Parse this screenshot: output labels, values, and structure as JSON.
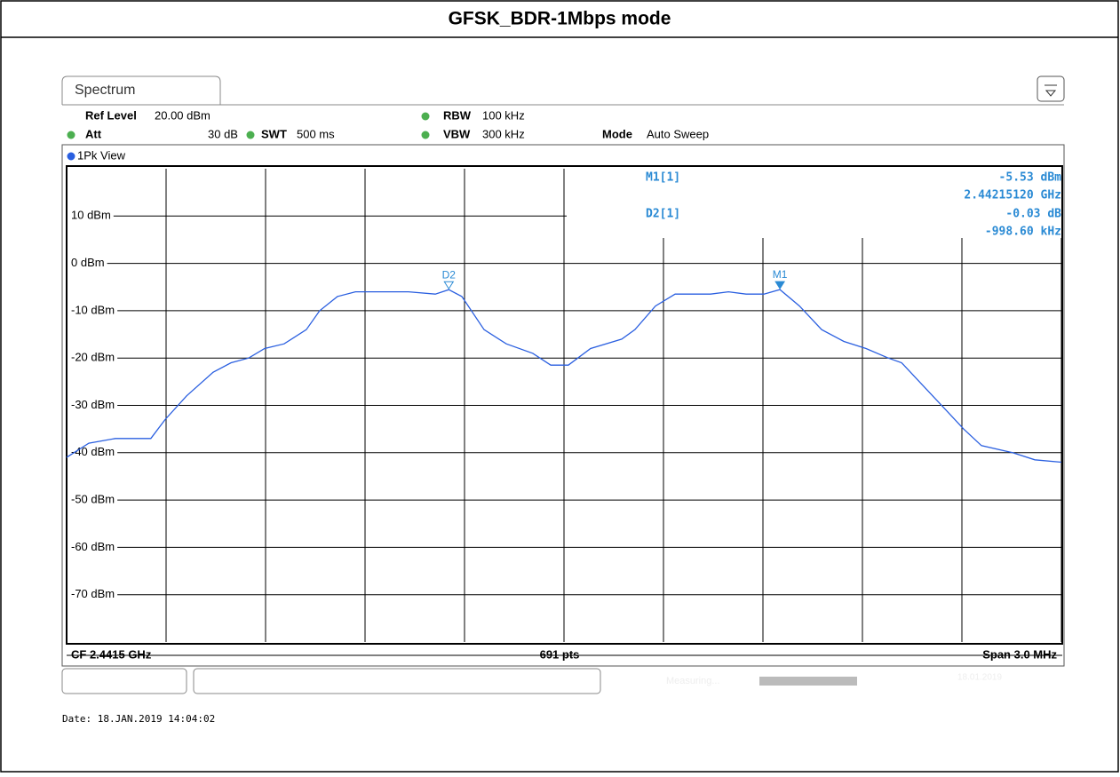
{
  "header": {
    "title": "GFSK_BDR-1Mbps mode"
  },
  "instrument": {
    "tab": "Spectrum",
    "ref_level_label": "Ref Level",
    "ref_level": "20.00 dBm",
    "att_label": "Att",
    "att": "30 dB",
    "swt_label": "SWT",
    "swt": "500 ms",
    "rbw_label": "RBW",
    "rbw": "100 kHz",
    "vbw_label": "VBW",
    "vbw": "300 kHz",
    "mode_label": "Mode",
    "mode": "Auto Sweep",
    "view": "1Pk View"
  },
  "chart_data": {
    "type": "line",
    "x": [
      2.44,
      2.440067,
      2.440147,
      2.440254,
      2.440297,
      2.440362,
      2.440442,
      2.440496,
      2.440549,
      2.440597,
      2.440656,
      2.440723,
      2.440763,
      2.440817,
      2.440871,
      2.440951,
      2.441031,
      2.441112,
      2.4411526,
      2.441192,
      2.441259,
      2.441326,
      2.441406,
      2.44146,
      2.441513,
      2.44158,
      2.441674,
      2.441714,
      2.441776,
      2.441835,
      2.441942,
      2.441996,
      2.442049,
      2.442103,
      2.4421512,
      2.44221,
      2.442277,
      2.442344,
      2.442411,
      2.442478,
      2.442518,
      2.442585,
      2.442652,
      2.442705,
      2.442759,
      2.442853,
      2.44292,
      2.443
    ],
    "series": [
      {
        "color": "#2a5fe0",
        "values": [
          -41,
          -38,
          -37,
          -37,
          -33,
          -28,
          -23,
          -21,
          -20,
          -18,
          -17,
          -14,
          -10,
          -7,
          -6,
          -6,
          -6,
          -6.5,
          -5.56,
          -7,
          -14,
          -17,
          -19,
          -21.5,
          -21.5,
          -18,
          -16,
          -14,
          -9,
          -6.5,
          -6.5,
          -6,
          -6.5,
          -6.5,
          -5.53,
          -9,
          -14,
          -16.5,
          -18,
          -20,
          -21,
          -26,
          -31,
          -35,
          -38.5,
          -40,
          -41.5,
          -42
        ]
      }
    ],
    "xlim": [
      2.44,
      2.443
    ],
    "ylim": [
      -80,
      20
    ],
    "yticks": [
      {
        "value": 10,
        "label": "10 dBm"
      },
      {
        "value": 0,
        "label": "0 dBm"
      },
      {
        "value": -10,
        "label": "-10 dBm"
      },
      {
        "value": -20,
        "label": "-20 dBm"
      },
      {
        "value": -30,
        "label": "-30 dBm"
      },
      {
        "value": -40,
        "label": "-40 dBm"
      },
      {
        "value": -50,
        "label": "-50 dBm"
      },
      {
        "value": -60,
        "label": "-60 dBm"
      },
      {
        "value": -70,
        "label": "-70 dBm"
      }
    ],
    "xticks": [
      2.4403,
      2.4406,
      2.4409,
      2.4412,
      2.4415,
      2.4418,
      2.4421,
      2.4424,
      2.4427,
      2.443
    ],
    "grid": true,
    "markers": [
      {
        "label": "M1",
        "readout": "M1[1]",
        "x": 2.4421512,
        "y": -5.53,
        "y_label": "-5.53 dBm",
        "x_label": "2.44215120 GHz"
      },
      {
        "label": "D2",
        "readout": "D2[1]",
        "x": 2.4411526,
        "y": -5.56,
        "delta_y_label": "-0.03 dB",
        "delta_x_label": "-998.60 kHz"
      }
    ]
  },
  "footer": {
    "cf": "CF 2.4415 GHz",
    "pts": "691 pts",
    "span": "Span 3.0 MHz",
    "status": "Measuring...",
    "status_date": "18.01.2019"
  },
  "date": "Date: 18.JAN.2019  14:04:02"
}
